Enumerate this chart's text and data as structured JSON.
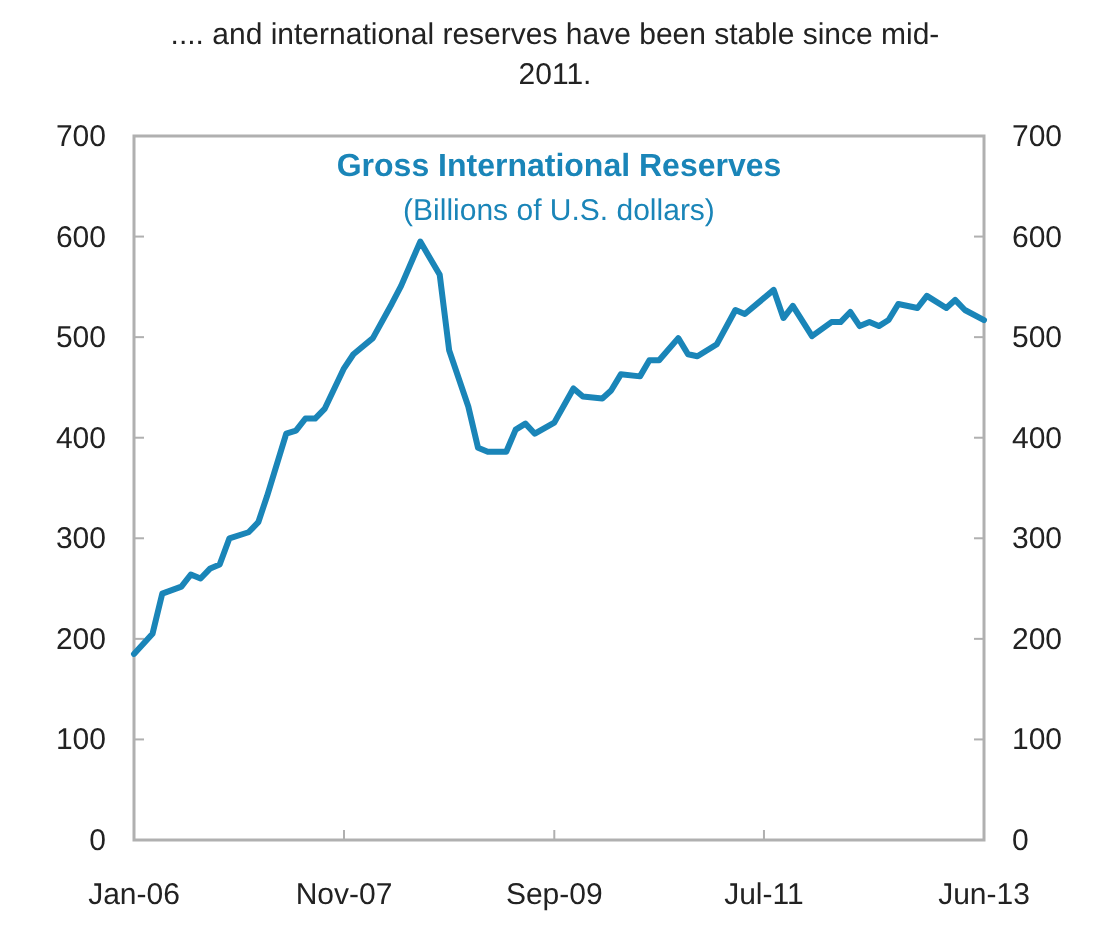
{
  "chart_data": {
    "type": "line",
    "title": "Gross International Reserves",
    "subtitle": "(Billions of U.S. dollars)",
    "annotations": [
      ".... and international reserves have been stable since mid-2011."
    ],
    "x": [
      "2006-01",
      "2006-03",
      "2006-04",
      "2006-06",
      "2006-07",
      "2006-08",
      "2006-09",
      "2006-10",
      "2006-11",
      "2007-01",
      "2007-02",
      "2007-03",
      "2007-05",
      "2007-06",
      "2007-07",
      "2007-08",
      "2007-09",
      "2007-11",
      "2007-12",
      "2008-02",
      "2008-04",
      "2008-05",
      "2008-07",
      "2008-09",
      "2008-10",
      "2008-12",
      "2009-01",
      "2009-02",
      "2009-04",
      "2009-05",
      "2009-06",
      "2009-07",
      "2009-09",
      "2009-11",
      "2009-12",
      "2010-02",
      "2010-03",
      "2010-04",
      "2010-06",
      "2010-07",
      "2010-08",
      "2010-10",
      "2010-11",
      "2010-12",
      "2011-02",
      "2011-04",
      "2011-05",
      "2011-08",
      "2011-09",
      "2011-10",
      "2011-12",
      "2012-02",
      "2012-03",
      "2012-04",
      "2012-05",
      "2012-06",
      "2012-07",
      "2012-08",
      "2012-09",
      "2012-11",
      "2012-12",
      "2013-02",
      "2013-03",
      "2013-04",
      "2013-06"
    ],
    "series": [
      {
        "color": "#1a85b8",
        "values": [
          185,
          205,
          245,
          252,
          264,
          260,
          270,
          274,
          300,
          306,
          316,
          342,
          404,
          407,
          419,
          419,
          429,
          469,
          483,
          499,
          533,
          551,
          595,
          562,
          487,
          431,
          390,
          386,
          386,
          408,
          414,
          404,
          415,
          449,
          441,
          439,
          447,
          463,
          461,
          477,
          477,
          499,
          483,
          481,
          493,
          527,
          523,
          547,
          519,
          531,
          501,
          515,
          515,
          525,
          511,
          515,
          511,
          517,
          533,
          529,
          541,
          529,
          537,
          527,
          517
        ]
      }
    ],
    "xlim": [
      "2006-01",
      "2013-06"
    ],
    "xticks": [
      {
        "value": "2006-01",
        "label": "Jan-06"
      },
      {
        "value": "2007-11",
        "label": "Nov-07"
      },
      {
        "value": "2009-09",
        "label": "Sep-09"
      },
      {
        "value": "2011-07",
        "label": "Jul-11"
      },
      {
        "value": "2013-06",
        "label": "Jun-13"
      }
    ],
    "ylim": [
      0,
      700
    ],
    "yticks": [
      0,
      100,
      200,
      300,
      400,
      500,
      600,
      700
    ],
    "y2lim": [
      0,
      700
    ],
    "y2ticks": [
      0,
      100,
      200,
      300,
      400,
      500,
      600,
      700
    ],
    "grid": false,
    "marker": "none",
    "line_style": "solid"
  }
}
